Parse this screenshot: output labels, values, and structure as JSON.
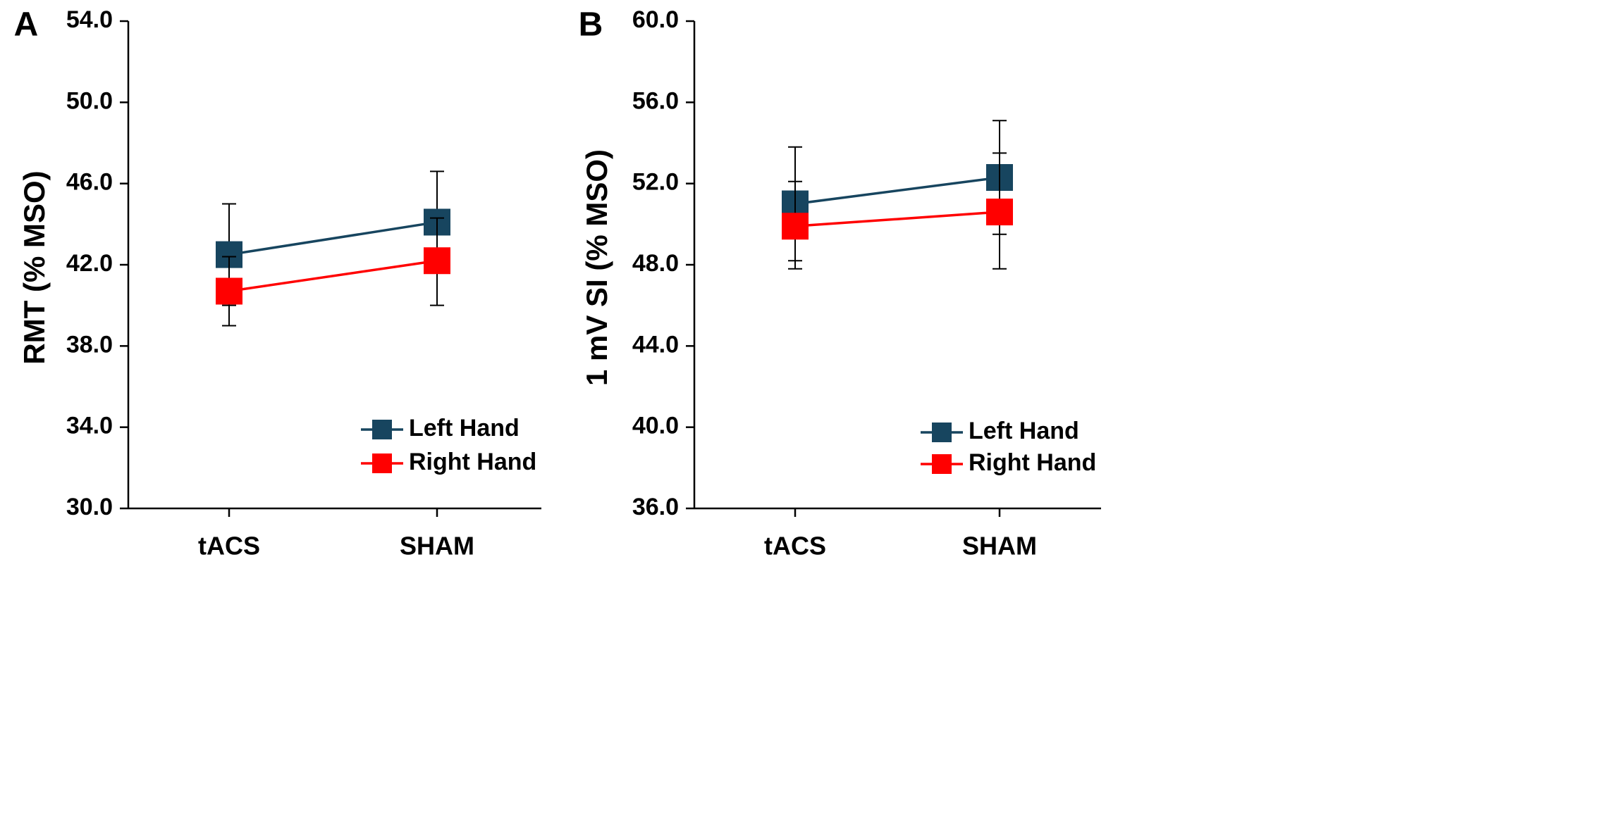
{
  "chart_data": [
    {
      "type": "line",
      "panel_label": "A",
      "title": "",
      "xlabel": "",
      "ylabel": "RMT (% MSO)",
      "categories": [
        "tACS",
        "SHAM"
      ],
      "ylim": [
        30.0,
        54.0
      ],
      "yticks": [
        "30.0",
        "34.0",
        "38.0",
        "42.0",
        "46.0",
        "50.0",
        "54.0"
      ],
      "grid": false,
      "legend_position": "bottom-right",
      "series": [
        {
          "name": "Left Hand",
          "color": "#17455f",
          "values": [
            42.5,
            44.1
          ],
          "error_low": [
            40.0,
            41.7
          ],
          "error_high": [
            45.0,
            46.6
          ]
        },
        {
          "name": "Right Hand",
          "color": "#ff0000",
          "values": [
            40.7,
            42.2
          ],
          "error_low": [
            39.0,
            40.0
          ],
          "error_high": [
            42.4,
            44.3
          ]
        }
      ]
    },
    {
      "type": "line",
      "panel_label": "B",
      "title": "",
      "xlabel": "",
      "ylabel": "1 mV SI (% MSO)",
      "categories": [
        "tACS",
        "SHAM"
      ],
      "ylim": [
        36.0,
        60.0
      ],
      "yticks": [
        "36.0",
        "40.0",
        "44.0",
        "48.0",
        "52.0",
        "56.0",
        "60.0"
      ],
      "grid": false,
      "legend_position": "bottom-right",
      "series": [
        {
          "name": "Left Hand",
          "color": "#17455f",
          "values": [
            51.0,
            52.3
          ],
          "error_low": [
            48.2,
            49.5
          ],
          "error_high": [
            53.8,
            55.1
          ]
        },
        {
          "name": "Right Hand",
          "color": "#ff0000",
          "values": [
            49.9,
            50.6
          ],
          "error_low": [
            47.8,
            47.8
          ],
          "error_high": [
            52.1,
            53.5
          ]
        }
      ]
    }
  ]
}
